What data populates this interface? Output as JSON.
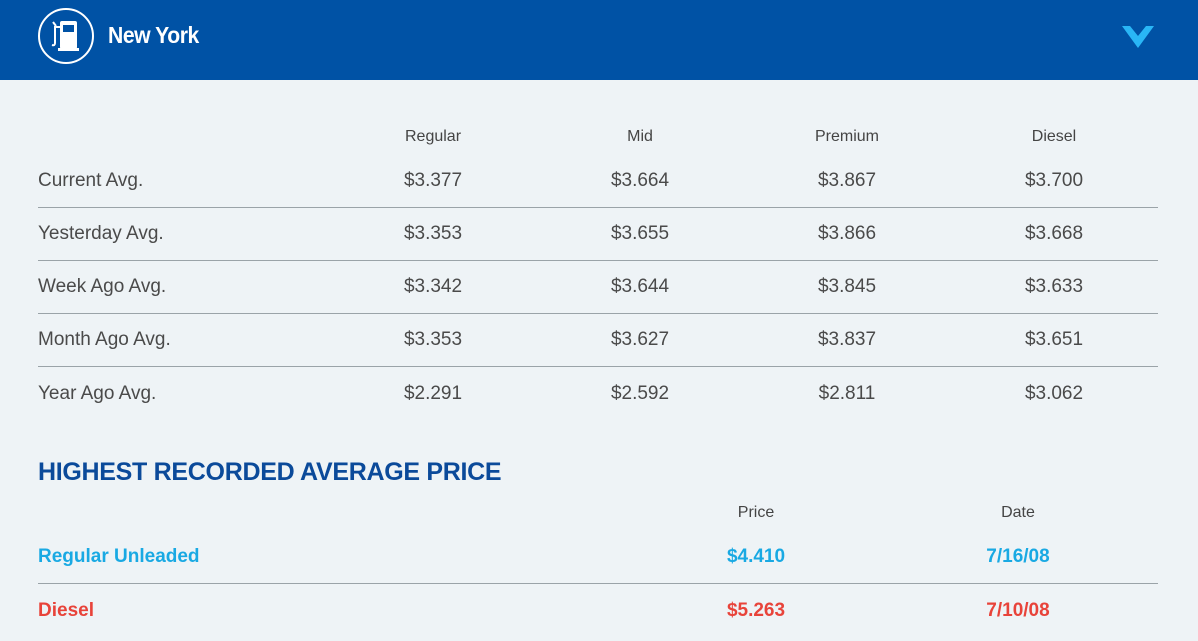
{
  "header": {
    "title": "New York",
    "logo_icon": "gas-pump-icon",
    "toggle_icon": "chevron-down-icon",
    "colors": {
      "bar": "#0052a5",
      "chevron": "#29b6f6"
    }
  },
  "averages": {
    "columns": [
      "Regular",
      "Mid",
      "Premium",
      "Diesel"
    ],
    "rows": [
      {
        "label": "Current Avg.",
        "values": [
          "$3.377",
          "$3.664",
          "$3.867",
          "$3.700"
        ]
      },
      {
        "label": "Yesterday Avg.",
        "values": [
          "$3.353",
          "$3.655",
          "$3.866",
          "$3.668"
        ]
      },
      {
        "label": "Week Ago Avg.",
        "values": [
          "$3.342",
          "$3.644",
          "$3.845",
          "$3.633"
        ]
      },
      {
        "label": "Month Ago Avg.",
        "values": [
          "$3.353",
          "$3.627",
          "$3.837",
          "$3.651"
        ]
      },
      {
        "label": "Year Ago Avg.",
        "values": [
          "$2.291",
          "$2.592",
          "$2.811",
          "$3.062"
        ]
      }
    ]
  },
  "highest": {
    "title": "HIGHEST RECORDED AVERAGE PRICE",
    "columns": [
      "Price",
      "Date"
    ],
    "rows": [
      {
        "label": "Regular Unleaded",
        "price": "$4.410",
        "date": "7/16/08",
        "color": "#19a9e3"
      },
      {
        "label": "Diesel",
        "price": "$5.263",
        "date": "7/10/08",
        "color": "#e8433a"
      }
    ]
  }
}
